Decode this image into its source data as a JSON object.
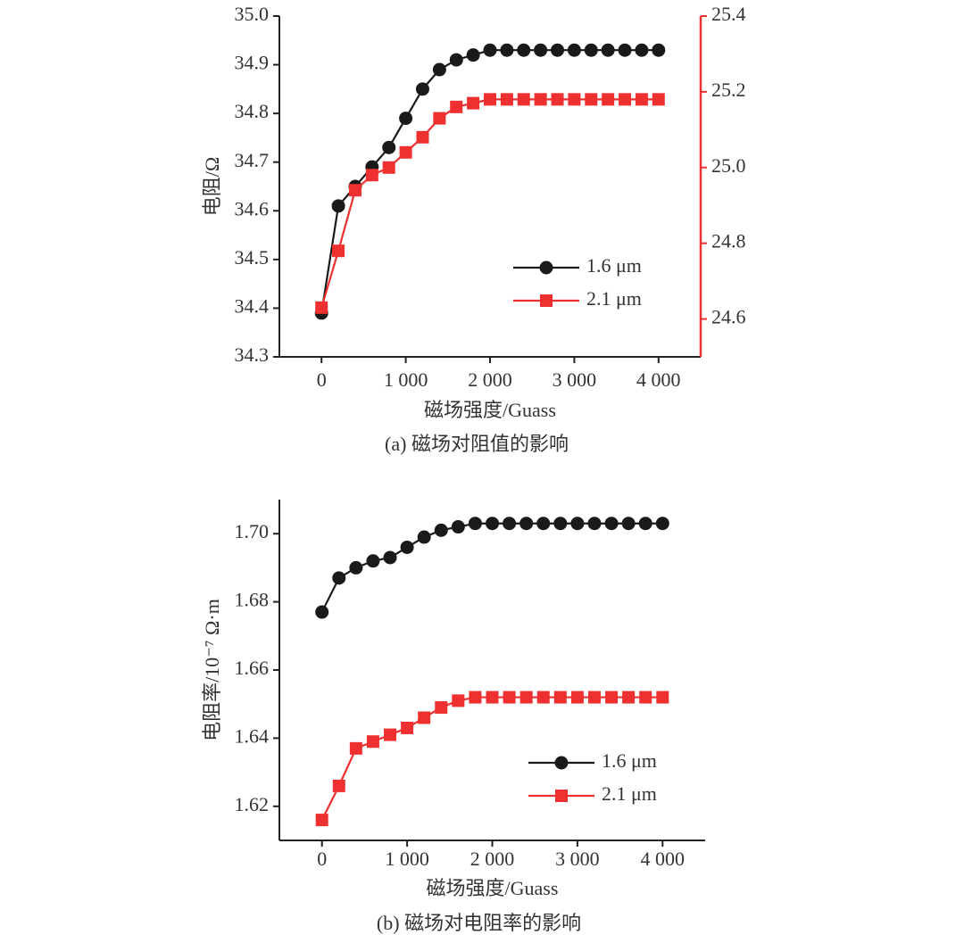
{
  "chart_data": [
    {
      "type": "line",
      "y_label": "电阻/Ω",
      "x_label": "磁场强度/Guass",
      "caption": "(a) 磁场对阻值的影响",
      "x": [
        0,
        200,
        400,
        600,
        800,
        1000,
        1200,
        1400,
        1600,
        1800,
        2000,
        2200,
        2400,
        2600,
        2800,
        3000,
        3200,
        3400,
        3600,
        3800,
        4000
      ],
      "xlim": [
        -500,
        4500
      ],
      "xticks": [
        0,
        {
          "value": 1000,
          "label": "1 000"
        },
        {
          "value": 2000,
          "label": "2 000"
        },
        {
          "value": 3000,
          "label": "3 000"
        },
        {
          "value": 4000,
          "label": "4 000"
        }
      ],
      "ylim": [
        34.3,
        35.0
      ],
      "yticks": [
        34.3,
        34.4,
        34.5,
        34.6,
        34.7,
        34.8,
        34.9,
        {
          "value": 35,
          "label": "35.0"
        }
      ],
      "y2lim": [
        24.5,
        25.4
      ],
      "y2ticks": [
        24.6,
        24.8,
        {
          "value": 25,
          "label": "25.0"
        },
        25.2,
        25.4
      ],
      "y2_color": "#ee3030",
      "legend": "lower right",
      "series": [
        {
          "name": "1.6 μm",
          "color": "#1a1a1a",
          "marker": "circle",
          "values": [
            34.39,
            34.61,
            34.65,
            34.69,
            34.73,
            34.79,
            34.85,
            34.89,
            34.91,
            34.92,
            34.93,
            34.93,
            34.93,
            34.93,
            34.93,
            34.93,
            34.93,
            34.93,
            34.93,
            34.93,
            34.93
          ]
        },
        {
          "name": "2.1 μm",
          "color": "#ee3030",
          "marker": "square",
          "axis": "y2",
          "values": [
            24.63,
            24.78,
            24.94,
            24.98,
            25.0,
            25.04,
            25.08,
            25.13,
            25.16,
            25.17,
            25.18,
            25.18,
            25.18,
            25.18,
            25.18,
            25.18,
            25.18,
            25.18,
            25.18,
            25.18,
            25.18
          ]
        }
      ]
    },
    {
      "type": "line",
      "y_label": "电阻率/10⁻⁷ Ω·m",
      "x_label": "磁场强度/Guass",
      "caption": "(b) 磁场对电阻率的影响",
      "x": [
        0,
        200,
        400,
        600,
        800,
        1000,
        1200,
        1400,
        1600,
        1800,
        2000,
        2200,
        2400,
        2600,
        2800,
        3000,
        3200,
        3400,
        3600,
        3800,
        4000
      ],
      "xlim": [
        -500,
        4500
      ],
      "xticks": [
        0,
        {
          "value": 1000,
          "label": "1 000"
        },
        {
          "value": 2000,
          "label": "2 000"
        },
        {
          "value": 3000,
          "label": "3 000"
        },
        {
          "value": 4000,
          "label": "4 000"
        }
      ],
      "ylim": [
        1.61,
        1.71
      ],
      "yticks": [
        1.62,
        1.64,
        1.66,
        1.68,
        {
          "value": 1.7,
          "label": "1.70"
        }
      ],
      "legend": "lower right",
      "series": [
        {
          "name": "1.6 μm",
          "color": "#1a1a1a",
          "marker": "circle",
          "values": [
            1.677,
            1.687,
            1.69,
            1.692,
            1.693,
            1.696,
            1.699,
            1.701,
            1.702,
            1.703,
            1.703,
            1.703,
            1.703,
            1.703,
            1.703,
            1.703,
            1.703,
            1.703,
            1.703,
            1.703,
            1.703
          ]
        },
        {
          "name": "2.1 μm",
          "color": "#ee3030",
          "marker": "square",
          "values": [
            1.616,
            1.626,
            1.637,
            1.639,
            1.641,
            1.643,
            1.646,
            1.649,
            1.651,
            1.652,
            1.652,
            1.652,
            1.652,
            1.652,
            1.652,
            1.652,
            1.652,
            1.652,
            1.652,
            1.652,
            1.652
          ]
        }
      ]
    }
  ]
}
